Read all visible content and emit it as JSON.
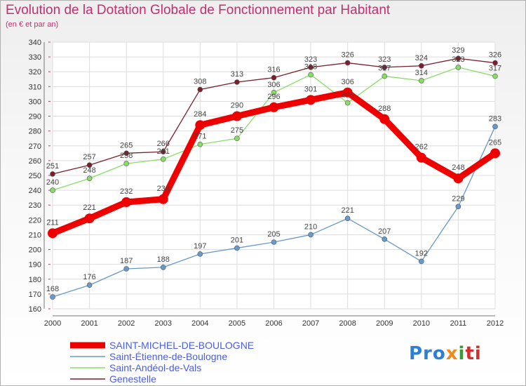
{
  "chart_data": {
    "type": "line",
    "title": "Evolution de la Dotation Globale de Fonctionnement par Habitant",
    "subtitle": "(en € et par an)",
    "x": [
      "2000",
      "2001",
      "2002",
      "2003",
      "2004",
      "2005",
      "2006",
      "2007",
      "2008",
      "2009",
      "2010",
      "2011",
      "2012"
    ],
    "ylim": [
      160,
      340
    ],
    "yticks": [
      160,
      170,
      180,
      190,
      200,
      210,
      220,
      230,
      240,
      250,
      260,
      270,
      280,
      290,
      300,
      310,
      320,
      330,
      340
    ],
    "grid": true,
    "series": [
      {
        "name": "Genestelle",
        "color": "#7a1f2b",
        "values": [
          251,
          257,
          265,
          266,
          308,
          313,
          316,
          323,
          326,
          323,
          324,
          329,
          326
        ]
      },
      {
        "name": "Saint-Andéol-de-Vals",
        "color": "#88dd66",
        "values": [
          240,
          248,
          258,
          261,
          271,
          275,
          306,
          318,
          299,
          317,
          314,
          323,
          317
        ]
      },
      {
        "name": "Saint-Étienne-de-Boulogne",
        "color": "#6699cc",
        "values": [
          168,
          176,
          187,
          188,
          197,
          201,
          205,
          210,
          221,
          207,
          192,
          229,
          283
        ]
      },
      {
        "name": "SAINT-MICHEL-DE-BOULOGNE",
        "color": "#ee0000",
        "values": [
          211,
          221,
          232,
          234,
          284,
          290,
          296,
          301,
          306,
          288,
          262,
          248,
          265
        ]
      }
    ],
    "legend": [
      "SAINT-MICHEL-DE-BOULOGNE",
      "Saint-Étienne-de-Boulogne",
      "Saint-Andéol-de-Vals",
      "Genestelle"
    ]
  },
  "logo": {
    "p1": "Pro",
    "p2": "x",
    "p3": "i",
    "p4": "ti"
  }
}
